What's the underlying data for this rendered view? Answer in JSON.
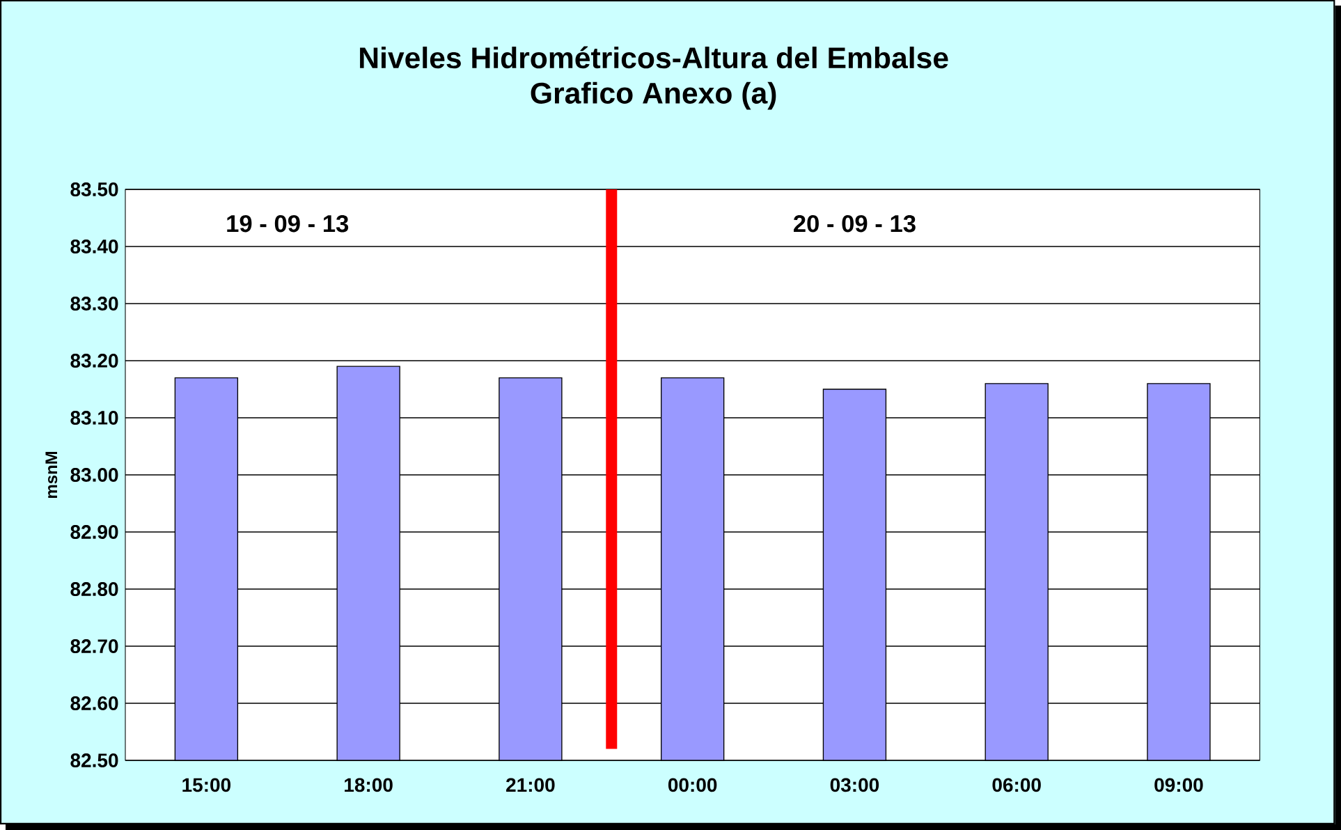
{
  "chart_data": {
    "type": "bar",
    "title": "Niveles Hidrométricos-Altura del Embalse",
    "subtitle": "Grafico Anexo (a)",
    "ylabel": "msnM",
    "categories": [
      "15:00",
      "18:00",
      "21:00",
      "00:00",
      "03:00",
      "06:00",
      "09:00"
    ],
    "values": [
      83.17,
      83.19,
      83.17,
      83.17,
      83.15,
      83.16,
      83.16
    ],
    "color": "#9999ff",
    "ylim": [
      82.5,
      83.5
    ],
    "yticks": [
      {
        "value": 82.5,
        "label": "82.50"
      },
      {
        "value": 82.6,
        "label": "82.60"
      },
      {
        "value": 82.7,
        "label": "82.70"
      },
      {
        "value": 82.8,
        "label": "82.80"
      },
      {
        "value": 82.9,
        "label": "82.90"
      },
      {
        "value": 83.0,
        "label": "83.00"
      },
      {
        "value": 83.1,
        "label": "83.10"
      },
      {
        "value": 83.2,
        "label": "83.20"
      },
      {
        "value": 83.3,
        "label": "83.30"
      },
      {
        "value": 83.4,
        "label": "83.40"
      },
      {
        "value": 83.5,
        "label": "83.50"
      }
    ],
    "grid": "y",
    "ref_lines": [
      {
        "axis": "x",
        "value": "00:00",
        "color": "#ff0000"
      }
    ],
    "annotations": [
      "19 - 09 - 13",
      "20 - 09 - 13"
    ]
  }
}
